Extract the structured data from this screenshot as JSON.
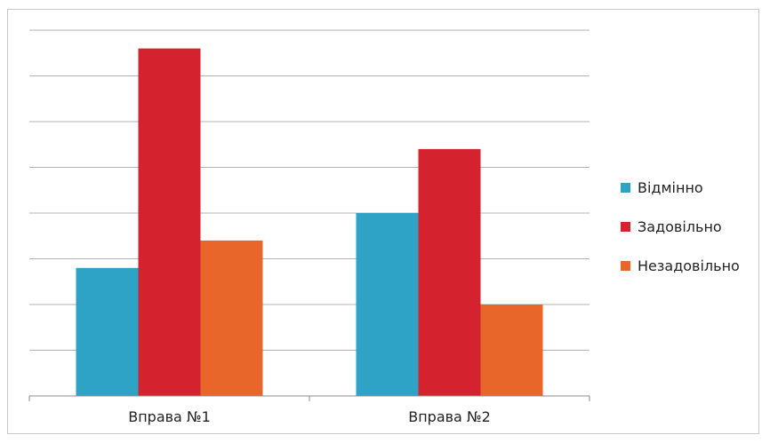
{
  "chart_data": {
    "type": "bar",
    "categories": [
      "Вправа №1",
      "Вправа №2"
    ],
    "series": [
      {
        "name": "Відмінно",
        "color": "#2ea3c6",
        "values": [
          2.8,
          4.0
        ]
      },
      {
        "name": "Задовільно",
        "color": "#d4232f",
        "values": [
          7.6,
          5.4
        ]
      },
      {
        "name": "Незадовільно",
        "color": "#e8662a",
        "values": [
          3.4,
          2.0
        ]
      }
    ],
    "ylim": [
      0,
      8
    ],
    "grid": true,
    "legend": "right"
  }
}
